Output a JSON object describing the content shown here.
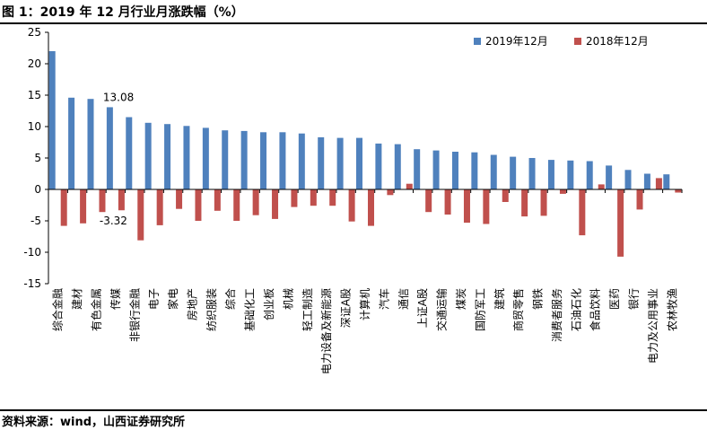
{
  "figure": {
    "title": "图 1：2019 年 12 月行业月涨跌幅（%）",
    "source": "资料来源：wind，山西证券研究所"
  },
  "colors": {
    "series_2019": "#4f81bd",
    "series_2018": "#c0504d"
  },
  "chart_data": {
    "type": "bar",
    "title": "",
    "xlabel": "",
    "ylabel": "",
    "ylim": [
      -15,
      25
    ],
    "yticks": [
      25,
      20,
      15,
      10,
      5,
      0,
      -5,
      -10,
      -15
    ],
    "grid": false,
    "legend_position": "top-right",
    "categories": [
      "综合金融",
      "建材",
      "有色金属",
      "传媒",
      "非银行金融",
      "电子",
      "家电",
      "房地产",
      "纺织服装",
      "综合",
      "基础化工",
      "创业板",
      "机械",
      "轻工制造",
      "电力设备及新能源",
      "深证A股",
      "计算机",
      "汽车",
      "通信",
      "上证A股",
      "交通运输",
      "煤炭",
      "国防军工",
      "建筑",
      "商贸零售",
      "钢铁",
      "消费者服务",
      "石油石化",
      "食品饮料",
      "医药",
      "银行",
      "电力及公用事业",
      "农林牧渔"
    ],
    "series": [
      {
        "name": "2019年12月",
        "values": [
          22.0,
          14.6,
          14.4,
          13.08,
          11.5,
          10.6,
          10.4,
          10.1,
          9.8,
          9.4,
          9.3,
          9.1,
          9.1,
          8.9,
          8.3,
          8.2,
          8.2,
          7.3,
          7.2,
          6.4,
          6.2,
          6.0,
          5.9,
          5.5,
          5.2,
          5.0,
          4.7,
          4.6,
          4.5,
          3.8,
          3.1,
          2.5,
          2.4
        ]
      },
      {
        "name": "2018年12月",
        "values": [
          -5.8,
          -5.4,
          -3.6,
          -3.32,
          -8.1,
          -5.7,
          -3.1,
          -5.0,
          -3.4,
          -5.0,
          -4.1,
          -4.7,
          -2.8,
          -2.6,
          -2.6,
          -5.1,
          -5.8,
          -0.9,
          0.9,
          -3.6,
          -4.0,
          -5.3,
          -5.5,
          -2.0,
          -4.3,
          -4.2,
          -0.7,
          -7.3,
          0.8,
          -10.7,
          -3.2,
          1.8,
          -0.5
        ]
      }
    ],
    "annotations": [
      {
        "category": "传媒",
        "series": 0,
        "text": "13.08"
      },
      {
        "category": "传媒",
        "series": 1,
        "text": "-3.32"
      }
    ]
  }
}
